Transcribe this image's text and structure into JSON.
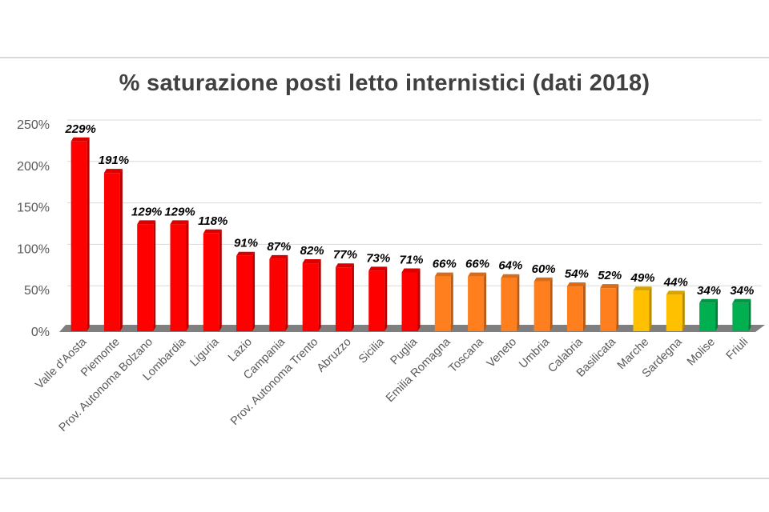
{
  "chart_data": {
    "type": "bar",
    "title": "% saturazione posti letto internistici (dati 2018)",
    "xlabel": "",
    "ylabel": "",
    "ylim": [
      0,
      250
    ],
    "yticks": [
      "0%",
      "50%",
      "100%",
      "150%",
      "200%",
      "250%"
    ],
    "grid": true,
    "legend": "none",
    "categories": [
      "Valle d'Aosta",
      "Piemonte",
      "Prov. Autonoma Bolzano",
      "Lombardia",
      "Liguria",
      "Lazio",
      "Campania",
      "Prov. Autonoma Trento",
      "Abruzzo",
      "Sicilia",
      "Puglia",
      "Emilia Romagna",
      "Toscana",
      "Veneto",
      "Umbria",
      "Calabria",
      "Basilicata",
      "Marche",
      "Sardegna",
      "Molise",
      "Friuli"
    ],
    "values": [
      229,
      191,
      129,
      129,
      118,
      91,
      87,
      82,
      77,
      73,
      71,
      66,
      66,
      64,
      60,
      54,
      52,
      49,
      44,
      34,
      34
    ],
    "data_labels": [
      "229%",
      "191%",
      "129%",
      "129%",
      "118%",
      "91%",
      "87%",
      "82%",
      "77%",
      "73%",
      "71%",
      "66%",
      "66%",
      "64%",
      "60%",
      "54%",
      "52%",
      "49%",
      "44%",
      "34%",
      "34%"
    ],
    "bar_colors": [
      "#ff0000",
      "#ff0000",
      "#ff0000",
      "#ff0000",
      "#ff0000",
      "#ff0000",
      "#ff0000",
      "#ff0000",
      "#ff0000",
      "#ff0000",
      "#ff0000",
      "#ff7f1f",
      "#ff7f1f",
      "#ff7f1f",
      "#ff7f1f",
      "#ff7f1f",
      "#ff7f1f",
      "#ffc000",
      "#ffc000",
      "#00b050",
      "#00b050"
    ]
  }
}
